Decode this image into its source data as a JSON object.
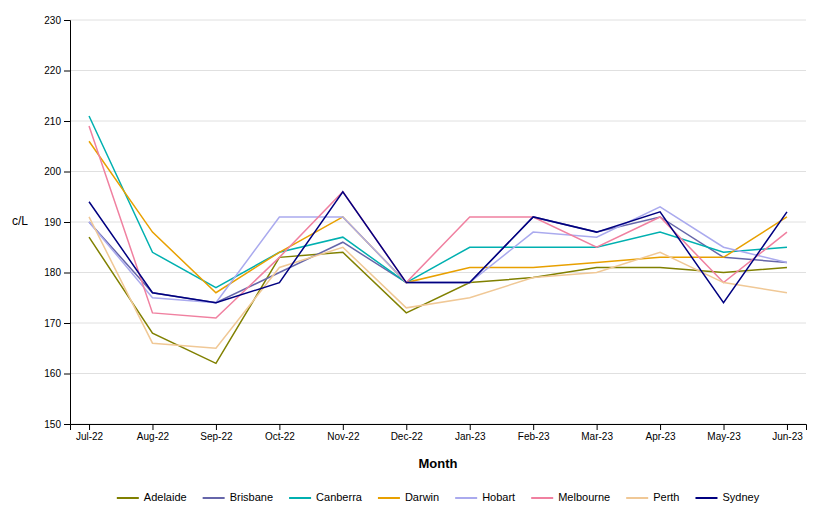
{
  "chart_data": {
    "type": "line",
    "xlabel": "Month",
    "ylabel": "c/L",
    "categories": [
      "Jul-22",
      "Aug-22",
      "Sep-22",
      "Oct-22",
      "Nov-22",
      "Dec-22",
      "Jan-23",
      "Feb-23",
      "Mar-23",
      "Apr-23",
      "May-23",
      "Jun-23"
    ],
    "series": [
      {
        "name": "Adelaide",
        "color": "#808000",
        "values": [
          187,
          168,
          162,
          183,
          184,
          172,
          178,
          179,
          181,
          181,
          180,
          181
        ]
      },
      {
        "name": "Brisbane",
        "color": "#6666aa",
        "values": [
          190,
          176,
          174,
          180,
          186,
          178,
          178,
          191,
          188,
          191,
          183,
          182
        ]
      },
      {
        "name": "Canberra",
        "color": "#00b0b0",
        "values": [
          211,
          184,
          177,
          184,
          187,
          178,
          185,
          185,
          185,
          188,
          184,
          185
        ]
      },
      {
        "name": "Darwin",
        "color": "#e8a000",
        "values": [
          206,
          188,
          176,
          184,
          191,
          178,
          181,
          181,
          182,
          183,
          183,
          191
        ]
      },
      {
        "name": "Hobart",
        "color": "#aaaaee",
        "values": [
          190,
          175,
          174,
          191,
          191,
          178,
          178,
          188,
          187,
          193,
          185,
          182
        ]
      },
      {
        "name": "Melbourne",
        "color": "#f080a0",
        "values": [
          209,
          172,
          171,
          183,
          196,
          178,
          191,
          191,
          185,
          191,
          178,
          188
        ]
      },
      {
        "name": "Perth",
        "color": "#f0c896",
        "values": [
          191,
          166,
          165,
          181,
          185,
          173,
          175,
          179,
          180,
          184,
          178,
          176
        ]
      },
      {
        "name": "Sydney",
        "color": "#000080",
        "values": [
          194,
          176,
          174,
          178,
          196,
          178,
          178,
          191,
          188,
          192,
          174,
          192
        ]
      }
    ],
    "ylim": [
      150,
      230
    ],
    "yticks": [
      150,
      160,
      170,
      180,
      190,
      200,
      210,
      220,
      230
    ],
    "grid": true,
    "legend": "bottom"
  }
}
